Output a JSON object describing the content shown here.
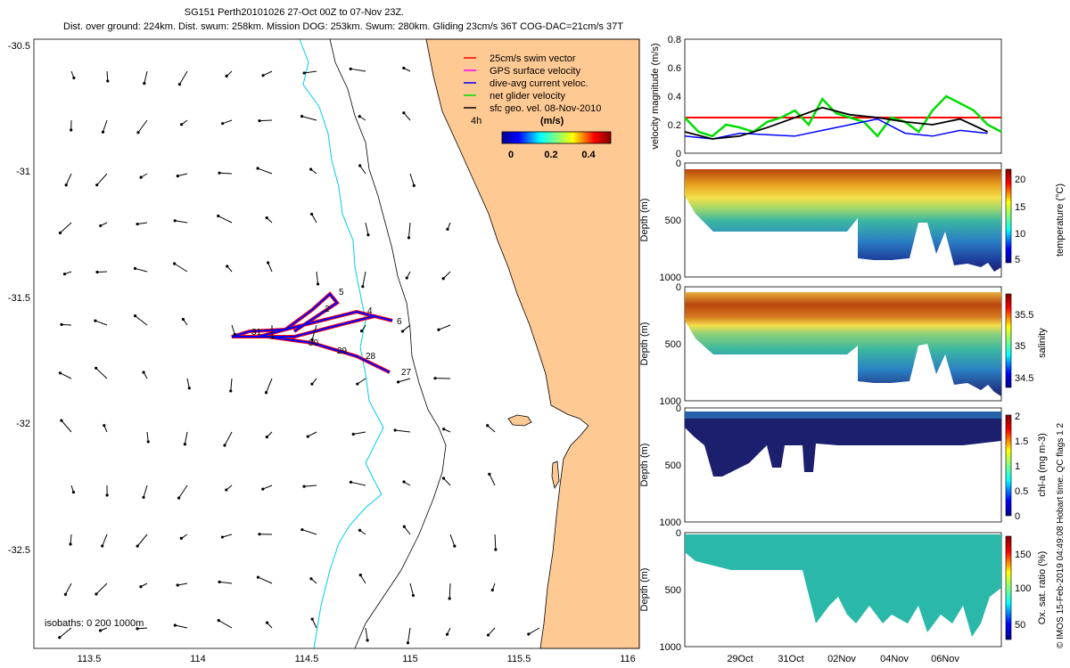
{
  "header": {
    "title_line1": "SG151 Perth20101026 27-Oct 00Z to 07-Nov 23Z.",
    "title_line2": "Dist. over ground: 224km. Dist. swum: 258km. Mission DOG: 253km. Swum: 280km. Gliding 23cm/s 36T COG-DAC=21cm/s 37T"
  },
  "map": {
    "legend": [
      {
        "label": "25cm/s swim vector",
        "color": "#ff0000"
      },
      {
        "label": "GPS surface velocity",
        "color": "#ff00ff"
      },
      {
        "label": "dive-avg current veloc.",
        "color": "#0000ff"
      },
      {
        "label": "net glider velocity",
        "color": "#00dd00"
      },
      {
        "label": "sfc geo. vel. 08-Nov-2010",
        "color": "#000000"
      }
    ],
    "legend_time_label": "4h",
    "colorbar_unit": "(m/s)",
    "colorbar_ticks": [
      "0",
      "0.2",
      "0.4"
    ],
    "isobath_label": "isobaths: 0   200  1000m",
    "x_ticks": [
      "113.5",
      "114",
      "114.5",
      "115",
      "115.5",
      "116"
    ],
    "y_ticks": [
      "-30.5",
      "-31",
      "-31.5",
      "-32",
      "-32.5"
    ],
    "day_labels": [
      "27",
      "28",
      "29",
      "30",
      "31",
      "1",
      "2",
      "3",
      "4",
      "5",
      "6"
    ],
    "colors": {
      "land": "#ffc993",
      "cyan_isobath": "#00ccee",
      "track_red": "#ff0000",
      "track_blue": "#0000ff"
    }
  },
  "right_panels": {
    "velocity_ylabel": "velocity magnitude (m/s)",
    "velocity_ticks": [
      "0",
      "0.2",
      "0.4",
      "0.6",
      "0.8"
    ],
    "depth_label": "Depth (m)",
    "depth_ticks": [
      "0",
      "500",
      "1000"
    ],
    "temperature": {
      "label": "temperature (°C)",
      "ticks": [
        "5",
        "10",
        "15",
        "20"
      ]
    },
    "salinity": {
      "label": "salinity",
      "ticks": [
        "34.5",
        "35",
        "35.5"
      ]
    },
    "chla": {
      "label": "chl-a (mg m-3)",
      "ticks": [
        "0",
        "0.5",
        "1",
        "1.5",
        "2"
      ]
    },
    "oxsat": {
      "label": "Ox. sat. ratio (%)",
      "ticks": [
        "50",
        "100",
        "150"
      ]
    },
    "date_ticks": [
      "29Oct",
      "31Oct",
      "02Nov",
      "04Nov",
      "06Nov"
    ],
    "footer": "© IMOS 15-Feb-2019 04:49:08 Hobart time. QC flags 1  2"
  },
  "chart_data": {
    "type": "line",
    "title": "velocity magnitude (m/s)",
    "ylim": [
      0,
      0.8
    ],
    "series": [
      {
        "name": "25cm/s swim vector",
        "values": [
          0.25,
          0.25
        ]
      },
      {
        "name": "net glider velocity",
        "x": [
          0,
          0.5,
          1,
          1.5,
          2,
          2.5,
          3,
          3.5,
          4,
          4.5,
          5,
          5.5,
          6,
          6.5,
          7,
          7.5,
          8,
          8.5,
          9,
          9.5,
          10,
          10.5,
          11,
          11.5
        ],
        "values": [
          0.25,
          0.15,
          0.12,
          0.2,
          0.18,
          0.15,
          0.22,
          0.25,
          0.3,
          0.2,
          0.38,
          0.28,
          0.25,
          0.22,
          0.12,
          0.25,
          0.22,
          0.15,
          0.3,
          0.4,
          0.35,
          0.3,
          0.2,
          0.15
        ]
      },
      {
        "name": "dive-avg current veloc.",
        "x": [
          0,
          1,
          2,
          3,
          4,
          5,
          6,
          7,
          8,
          9,
          10,
          11
        ],
        "values": [
          0.12,
          0.1,
          0.14,
          0.13,
          0.12,
          0.16,
          0.2,
          0.24,
          0.14,
          0.12,
          0.16,
          0.14
        ]
      },
      {
        "name": "sfc geo. vel. 08-Nov-2010",
        "x": [
          0,
          1,
          2,
          3,
          4,
          5,
          6,
          7,
          8,
          9,
          10,
          11
        ],
        "values": [
          0.15,
          0.1,
          0.12,
          0.18,
          0.25,
          0.32,
          0.27,
          0.25,
          0.22,
          0.2,
          0.24,
          0.15
        ]
      }
    ]
  }
}
